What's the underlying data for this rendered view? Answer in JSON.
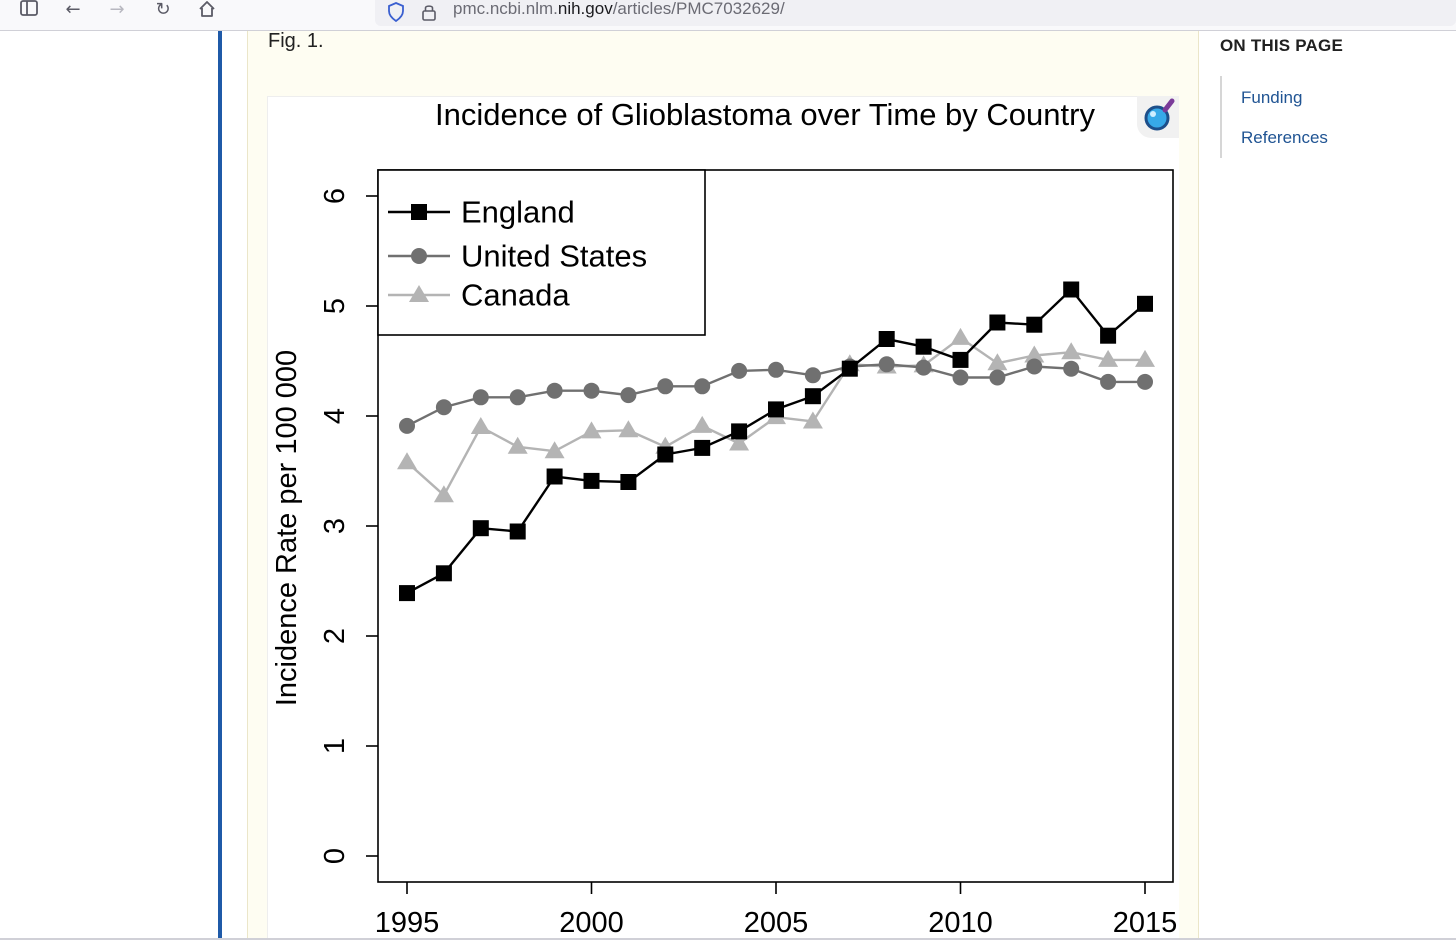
{
  "browser": {
    "url_prefix": "pmc.ncbi.nlm.",
    "url_domain": "nih.gov",
    "url_path": "/articles/PMC7032629/"
  },
  "figure": {
    "label": "Fig. 1."
  },
  "sidebar": {
    "title": "ON THIS PAGE",
    "links": [
      "Funding",
      "References"
    ]
  },
  "chart_data": {
    "type": "line",
    "title": "Incidence of Glioblastoma over Time by Country",
    "xlabel": "",
    "ylabel": "Incidence Rate per 100 000",
    "xlim": [
      1995,
      2015
    ],
    "ylim": [
      0,
      6
    ],
    "xticks": [
      1995,
      2000,
      2005,
      2010,
      2015
    ],
    "yticks": [
      0,
      1,
      2,
      3,
      4,
      5,
      6
    ],
    "legend_position": "top-left",
    "x": [
      1995,
      1996,
      1997,
      1998,
      1999,
      2000,
      2001,
      2002,
      2003,
      2004,
      2005,
      2006,
      2007,
      2008,
      2009,
      2010,
      2011,
      2012,
      2013,
      2014,
      2015
    ],
    "series": [
      {
        "name": "England",
        "color": "#000000",
        "marker": "square",
        "values": [
          2.39,
          2.57,
          2.98,
          2.95,
          3.45,
          3.41,
          3.4,
          3.65,
          3.71,
          3.86,
          4.06,
          4.18,
          4.43,
          4.7,
          4.63,
          4.51,
          4.85,
          4.83,
          5.15,
          4.73,
          5.02
        ]
      },
      {
        "name": "United States",
        "color": "#707070",
        "marker": "circle",
        "values": [
          3.91,
          4.08,
          4.17,
          4.17,
          4.23,
          4.23,
          4.19,
          4.27,
          4.27,
          4.41,
          4.42,
          4.37,
          4.45,
          4.47,
          4.44,
          4.35,
          4.35,
          4.45,
          4.43,
          4.31,
          4.31
        ]
      },
      {
        "name": "Canada",
        "color": "#b4b4b4",
        "marker": "triangle",
        "values": [
          3.58,
          3.28,
          3.9,
          3.72,
          3.68,
          3.86,
          3.87,
          3.72,
          3.91,
          3.75,
          3.99,
          3.95,
          4.47,
          4.45,
          4.46,
          4.71,
          4.48,
          4.55,
          4.58,
          4.51,
          4.51
        ]
      }
    ]
  }
}
